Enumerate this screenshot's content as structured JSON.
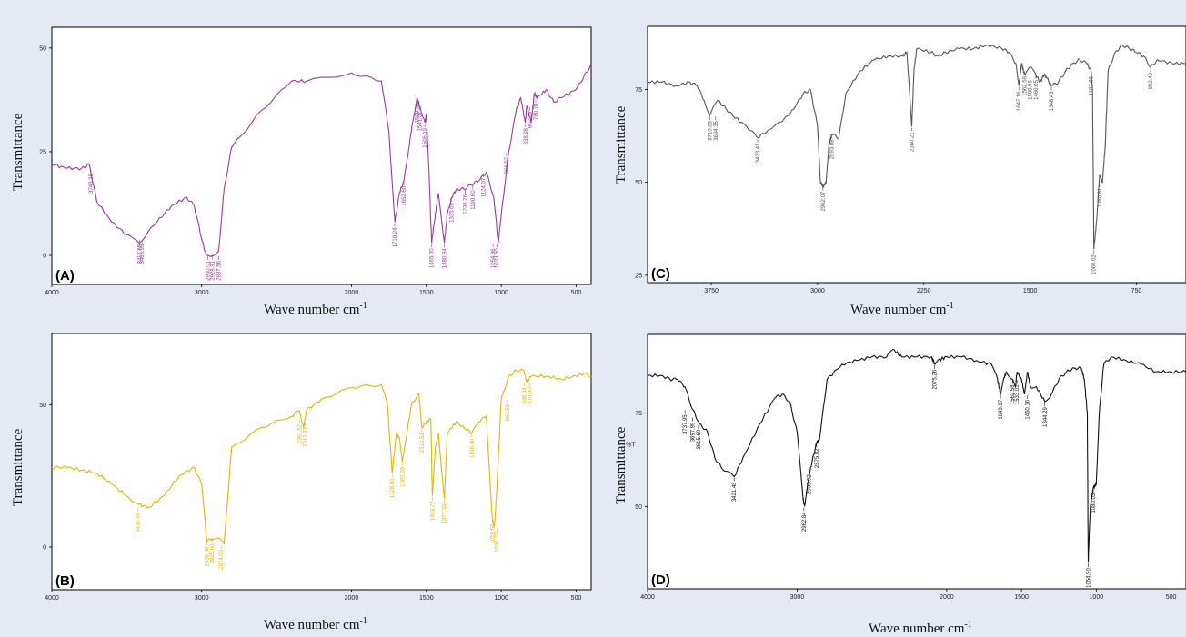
{
  "chart_data": [
    {
      "panel": "(A)",
      "type": "line",
      "color": "#9b3a9e",
      "xlabel": "Wave number cm",
      "xlabel_sup": "-1",
      "ylabel": "Transmittance",
      "xlim": [
        4000,
        400
      ],
      "ylim": [
        -7,
        55
      ],
      "xticks": [
        {
          "v": 4000,
          "t": "4000"
        },
        {
          "v": 3000,
          "t": "3000"
        },
        {
          "v": 2000,
          "t": "2000"
        },
        {
          "v": 1500,
          "t": "1500"
        },
        {
          "v": 1000,
          "t": "1000"
        },
        {
          "v": 500,
          "t": "500"
        }
      ],
      "yticks": [
        {
          "v": 0,
          "t": "0"
        },
        {
          "v": 25,
          "t": "25"
        },
        {
          "v": 50,
          "t": "50"
        }
      ],
      "x": [
        4000,
        3900,
        3800,
        3750,
        3700,
        3600,
        3500,
        3417,
        3300,
        3200,
        3100,
        3050,
        3000,
        2970,
        2930,
        2887,
        2850,
        2800,
        2600,
        2400,
        2300,
        2000,
        1800,
        1750,
        1710,
        1680,
        1650,
        1600,
        1563,
        1545,
        1510,
        1500,
        1480,
        1465,
        1440,
        1420,
        1380,
        1360,
        1330,
        1300,
        1250,
        1200,
        1150,
        1100,
        1050,
        1020,
        1000,
        950,
        900,
        870,
        840,
        830,
        800,
        780,
        760,
        700,
        650,
        600,
        500,
        450,
        400
      ],
      "y": [
        22,
        21,
        21,
        22,
        13,
        8,
        5,
        3,
        8,
        12,
        14,
        12,
        4,
        0,
        0,
        1,
        16,
        26,
        35,
        42,
        42,
        44,
        42,
        30,
        8,
        15,
        18,
        30,
        38,
        36,
        32,
        34,
        18,
        3,
        10,
        15,
        3,
        10,
        14,
        16,
        16,
        17,
        18,
        20,
        14,
        3,
        10,
        25,
        35,
        38,
        32,
        36,
        32,
        39,
        38,
        40,
        37,
        38,
        40,
        43,
        46
      ],
      "peaks": [
        {
          "x": 3415,
          "y": 4,
          "t": "3417.65"
        },
        {
          "x": 3398,
          "y": 4,
          "t": "3408.05"
        },
        {
          "x": 3740,
          "y": 21,
          "t": "3743.35"
        },
        {
          "x": 2960,
          "y": 0,
          "t": "2960.01"
        },
        {
          "x": 2930,
          "y": 0,
          "t": "2928.91"
        },
        {
          "x": 2887,
          "y": 0,
          "t": "2887.56"
        },
        {
          "x": 1712,
          "y": 8,
          "t": "1710.24"
        },
        {
          "x": 1650,
          "y": 18,
          "t": "1652.60"
        },
        {
          "x": 1563,
          "y": 38,
          "t": "1590.36"
        },
        {
          "x": 1545,
          "y": 36,
          "t": "1541.07"
        },
        {
          "x": 1510,
          "y": 32,
          "t": "1506.19"
        },
        {
          "x": 1465,
          "y": 3,
          "t": "1465.00"
        },
        {
          "x": 1380,
          "y": 3,
          "t": "1380.94"
        },
        {
          "x": 1333,
          "y": 14,
          "t": "1335.69"
        },
        {
          "x": 1240,
          "y": 16,
          "t": "1239.26"
        },
        {
          "x": 1190,
          "y": 17,
          "t": "1190.60"
        },
        {
          "x": 1120,
          "y": 20,
          "t": "1124.07"
        },
        {
          "x": 1055,
          "y": 3,
          "t": "1054.36"
        },
        {
          "x": 1030,
          "y": 3,
          "t": "1033.60"
        },
        {
          "x": 965,
          "y": 25,
          "t": "966.97"
        },
        {
          "x": 838,
          "y": 32,
          "t": "838.98"
        },
        {
          "x": 810,
          "y": 36,
          "t": "802.35"
        },
        {
          "x": 770,
          "y": 38,
          "t": "780.70"
        }
      ]
    },
    {
      "panel": "(B)",
      "type": "line",
      "color": "#e8b400",
      "xlabel": "Wave number cm",
      "xlabel_sup": "-1",
      "ylabel": "Transmittance",
      "xlim": [
        4000,
        400
      ],
      "ylim": [
        -15,
        75
      ],
      "xticks": [
        {
          "v": 4000,
          "t": "4000"
        },
        {
          "v": 3000,
          "t": "3000"
        },
        {
          "v": 2000,
          "t": "2000"
        },
        {
          "v": 1500,
          "t": "1500"
        },
        {
          "v": 1000,
          "t": "1000"
        },
        {
          "v": 500,
          "t": "500"
        }
      ],
      "yticks": [
        {
          "v": 0,
          "t": "0"
        },
        {
          "v": 50,
          "t": "50"
        }
      ],
      "x": [
        4000,
        3900,
        3800,
        3700,
        3600,
        3500,
        3420,
        3350,
        3250,
        3150,
        3050,
        3000,
        2965,
        2930,
        2890,
        2850,
        2800,
        2600,
        2400,
        2350,
        2320,
        2300,
        2200,
        2000,
        1800,
        1760,
        1728,
        1700,
        1680,
        1660,
        1600,
        1550,
        1530,
        1500,
        1470,
        1460,
        1440,
        1420,
        1380,
        1360,
        1300,
        1250,
        1196,
        1150,
        1100,
        1060,
        1046,
        1030,
        1000,
        950,
        900,
        850,
        830,
        800,
        700,
        600,
        500,
        450,
        400
      ],
      "y": [
        28,
        28,
        27,
        26,
        22,
        18,
        15,
        14,
        18,
        25,
        28,
        22,
        2,
        3,
        3,
        1,
        35,
        42,
        46,
        48,
        42,
        48,
        52,
        56,
        57,
        50,
        26,
        40,
        38,
        30,
        50,
        54,
        42,
        44,
        45,
        18,
        35,
        40,
        17,
        40,
        44,
        42,
        40,
        44,
        46,
        10,
        7,
        20,
        52,
        60,
        62,
        62,
        58,
        60,
        60,
        59,
        60,
        61,
        60
      ],
      "peaks": [
        {
          "x": 3425,
          "y": 14,
          "t": "3430.56"
        },
        {
          "x": 2965,
          "y": 2,
          "t": "2956.56"
        },
        {
          "x": 2930,
          "y": 3,
          "t": "2925.60"
        },
        {
          "x": 2870,
          "y": 1,
          "t": "2874.09"
        },
        {
          "x": 2345,
          "y": 45,
          "t": "2361.52"
        },
        {
          "x": 2310,
          "y": 44,
          "t": "2312.33"
        },
        {
          "x": 1728,
          "y": 26,
          "t": "1728.00"
        },
        {
          "x": 1660,
          "y": 30,
          "t": "1662.00"
        },
        {
          "x": 1530,
          "y": 42,
          "t": "1519.52"
        },
        {
          "x": 1460,
          "y": 18,
          "t": "1463.22"
        },
        {
          "x": 1380,
          "y": 17,
          "t": "1377.33"
        },
        {
          "x": 1196,
          "y": 40,
          "t": "1196.00"
        },
        {
          "x": 1060,
          "y": 10,
          "t": "1059.50"
        },
        {
          "x": 1030,
          "y": 7,
          "t": "1034.20"
        },
        {
          "x": 960,
          "y": 52,
          "t": "960.56"
        },
        {
          "x": 845,
          "y": 58,
          "t": "846.34"
        },
        {
          "x": 810,
          "y": 58,
          "t": "810.30"
        }
      ]
    },
    {
      "panel": "(C)",
      "type": "line",
      "color": "#555555",
      "xlabel": "Wave number cm",
      "xlabel_sup": "-1",
      "ylabel": "Transmittance",
      "xlim": [
        4200,
        400
      ],
      "ylim": [
        23,
        92
      ],
      "xticks": [
        {
          "v": 3750,
          "t": "3750"
        },
        {
          "v": 3000,
          "t": "3000"
        },
        {
          "v": 2250,
          "t": "2250"
        },
        {
          "v": 1500,
          "t": "1500"
        },
        {
          "v": 750,
          "t": "750"
        }
      ],
      "yticks": [
        {
          "v": 25,
          "t": "25"
        },
        {
          "v": 50,
          "t": "50"
        },
        {
          "v": 75,
          "t": "75"
        }
      ],
      "x": [
        4200,
        4100,
        4000,
        3900,
        3850,
        3800,
        3760,
        3740,
        3700,
        3650,
        3600,
        3500,
        3423,
        3350,
        3200,
        3100,
        3050,
        3000,
        2980,
        2960,
        2940,
        2920,
        2900,
        2850,
        2800,
        2700,
        2600,
        2500,
        2400,
        2370,
        2335,
        2320,
        2300,
        2200,
        2150,
        2100,
        2000,
        1900,
        1800,
        1700,
        1650,
        1600,
        1580,
        1560,
        1540,
        1500,
        1460,
        1430,
        1400,
        1380,
        1350,
        1300,
        1250,
        1200,
        1150,
        1100,
        1070,
        1060,
        1050,
        1030,
        1010,
        990,
        970,
        950,
        900,
        850,
        800,
        750,
        700,
        650,
        600,
        500,
        400
      ],
      "y": [
        77,
        77,
        76,
        77,
        76,
        72,
        68,
        70,
        72,
        70,
        68,
        65,
        62,
        64,
        68,
        74,
        75,
        65,
        50,
        49,
        50,
        60,
        63,
        62,
        74,
        80,
        83,
        84,
        84,
        85,
        65,
        80,
        86,
        85,
        84,
        85,
        86,
        86,
        87,
        86,
        85,
        82,
        76,
        82,
        79,
        81,
        79,
        77,
        79,
        78,
        76,
        77,
        80,
        82,
        83,
        82,
        80,
        75,
        32,
        40,
        52,
        50,
        60,
        80,
        85,
        87,
        86,
        85,
        84,
        81,
        83,
        82,
        82
      ],
      "peaks": [
        {
          "x": 3760,
          "y": 68,
          "t": "3710.03"
        },
        {
          "x": 3720,
          "y": 68,
          "t": "3694.35"
        },
        {
          "x": 3423,
          "y": 62,
          "t": "3423.41"
        },
        {
          "x": 2962,
          "y": 49,
          "t": "2962.07"
        },
        {
          "x": 2900,
          "y": 63,
          "t": "2893.08"
        },
        {
          "x": 2335,
          "y": 65,
          "t": "2360.21"
        },
        {
          "x": 1580,
          "y": 76,
          "t": "1647.16"
        },
        {
          "x": 1540,
          "y": 80,
          "t": "1562.58"
        },
        {
          "x": 1500,
          "y": 79,
          "t": "1508.96"
        },
        {
          "x": 1460,
          "y": 79,
          "t": "1460.05"
        },
        {
          "x": 1350,
          "y": 76,
          "t": "1346.43"
        },
        {
          "x": 1070,
          "y": 80,
          "t": "1107.86"
        },
        {
          "x": 1050,
          "y": 32,
          "t": "1060.02"
        },
        {
          "x": 1010,
          "y": 50,
          "t": "1080.81"
        },
        {
          "x": 650,
          "y": 81,
          "t": "802.49"
        }
      ]
    },
    {
      "panel": "(D)",
      "type": "line",
      "color": "#111111",
      "xlabel": "Wave number cm",
      "xlabel_sup": "-1",
      "ylabel": "Transmittance",
      "ylabel2": "%T",
      "xlim": [
        4000,
        400
      ],
      "ylim": [
        28,
        96
      ],
      "xticks": [
        {
          "v": 4000,
          "t": "4000"
        },
        {
          "v": 3000,
          "t": "3000"
        },
        {
          "v": 2000,
          "t": "2000"
        },
        {
          "v": 1500,
          "t": "1500"
        },
        {
          "v": 1000,
          "t": "1000"
        },
        {
          "v": 500,
          "t": "500"
        }
      ],
      "yticks": [
        {
          "v": 50,
          "t": "50"
        },
        {
          "v": 75,
          "t": "75"
        }
      ],
      "x": [
        4000,
        3900,
        3850,
        3800,
        3750,
        3700,
        3650,
        3600,
        3550,
        3500,
        3421,
        3350,
        3250,
        3150,
        3100,
        3050,
        3000,
        2960,
        2950,
        2930,
        2900,
        2870,
        2850,
        2800,
        2700,
        2600,
        2500,
        2400,
        2360,
        2300,
        2200,
        2100,
        2080,
        2060,
        2000,
        1900,
        1800,
        1700,
        1660,
        1640,
        1620,
        1600,
        1560,
        1540,
        1530,
        1500,
        1480,
        1460,
        1440,
        1400,
        1344,
        1300,
        1250,
        1200,
        1150,
        1100,
        1080,
        1060,
        1054,
        1040,
        1020,
        1000,
        980,
        950,
        900,
        800,
        700,
        600,
        500,
        400
      ],
      "y": [
        85,
        85,
        84,
        84,
        82,
        76,
        72,
        70,
        63,
        60,
        58,
        64,
        72,
        79,
        80,
        78,
        70,
        52,
        50,
        56,
        62,
        67,
        68,
        84,
        88,
        89,
        90,
        90,
        92,
        90,
        90,
        90,
        88,
        89,
        90,
        90,
        89,
        88,
        84,
        80,
        84,
        86,
        84,
        82,
        86,
        84,
        80,
        86,
        82,
        82,
        78,
        80,
        84,
        86,
        87,
        87,
        84,
        75,
        35,
        50,
        55,
        56,
        75,
        88,
        90,
        89,
        88,
        86,
        86,
        86
      ],
      "peaks": [
        {
          "x": 3750,
          "y": 76,
          "t": "3737.95"
        },
        {
          "x": 3700,
          "y": 74,
          "t": "3697.99"
        },
        {
          "x": 3660,
          "y": 72,
          "t": "3615.60"
        },
        {
          "x": 3421,
          "y": 58,
          "t": "3421.48"
        },
        {
          "x": 2955,
          "y": 50,
          "t": "2962.84"
        },
        {
          "x": 2920,
          "y": 60,
          "t": "2933.92"
        },
        {
          "x": 2870,
          "y": 67,
          "t": "2875.02"
        },
        {
          "x": 2080,
          "y": 88,
          "t": "2075.26"
        },
        {
          "x": 1640,
          "y": 80,
          "t": "1643.17"
        },
        {
          "x": 1560,
          "y": 84,
          "t": "1562.58"
        },
        {
          "x": 1530,
          "y": 84,
          "t": "1533.01"
        },
        {
          "x": 1460,
          "y": 80,
          "t": "1460.16"
        },
        {
          "x": 1344,
          "y": 78,
          "t": "1344.29"
        },
        {
          "x": 1054,
          "y": 35,
          "t": "1054.90"
        },
        {
          "x": 1020,
          "y": 55,
          "t": "1080.03"
        }
      ]
    }
  ]
}
